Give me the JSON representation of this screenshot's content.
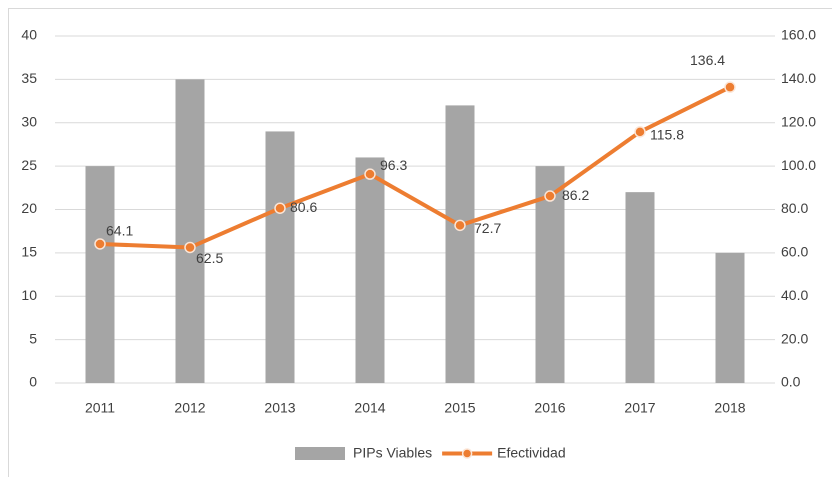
{
  "chart_data": {
    "type": "bar",
    "categories": [
      "2011",
      "2012",
      "2013",
      "2014",
      "2015",
      "2016",
      "2017",
      "2018"
    ],
    "series": [
      {
        "name": "PIPs Viables",
        "type": "bar",
        "color": "#a5a5a5",
        "values": [
          25,
          35,
          29,
          26,
          32,
          25,
          22,
          15
        ]
      },
      {
        "name": "Efectividad",
        "type": "line",
        "axis": "y2",
        "color": "#ed7d31",
        "values": [
          64.1,
          62.5,
          80.6,
          96.3,
          72.7,
          86.2,
          115.8,
          136.4
        ]
      }
    ],
    "ylim": [
      0,
      40
    ],
    "yticks": [
      0,
      5,
      10,
      15,
      20,
      25,
      30,
      35,
      40
    ],
    "y2lim": [
      0,
      160
    ],
    "y2ticks": [
      {
        "value": 0,
        "label": "0.0"
      },
      {
        "value": 20,
        "label": "20.0"
      },
      {
        "value": 40,
        "label": "40.0"
      },
      {
        "value": 60,
        "label": "60.0"
      },
      {
        "value": 80,
        "label": "80.0"
      },
      {
        "value": 100,
        "label": "100.0"
      },
      {
        "value": 120,
        "label": "120.0"
      },
      {
        "value": 140,
        "label": "140.0"
      },
      {
        "value": 160,
        "label": "160.0"
      }
    ],
    "grid": true,
    "legend": "bottom"
  }
}
